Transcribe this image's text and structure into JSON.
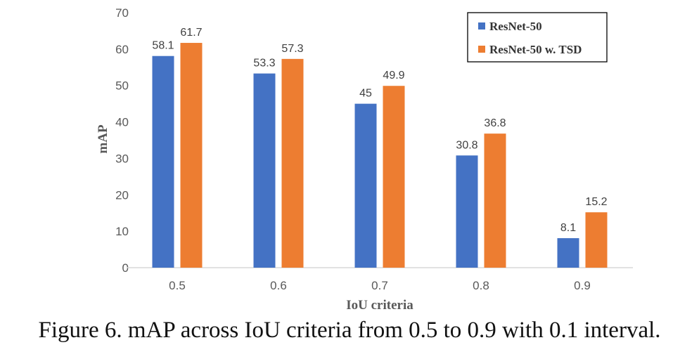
{
  "caption": "Figure 6. mAP across IoU criteria from 0.5 to 0.9 with 0.1 interval.",
  "chart_data": {
    "type": "bar",
    "categories": [
      "0.5",
      "0.6",
      "0.7",
      "0.8",
      "0.9"
    ],
    "series": [
      {
        "name": "ResNet-50",
        "values": [
          58.1,
          53.3,
          45,
          30.8,
          8.1
        ],
        "color": "#4472C4"
      },
      {
        "name": "ResNet-50 w. TSD",
        "values": [
          61.7,
          57.3,
          49.9,
          36.8,
          15.2
        ],
        "color": "#ED7D31"
      }
    ],
    "xlabel": "IoU criteria",
    "ylabel": "mAP",
    "ylim": [
      0,
      70
    ],
    "yticks": [
      0,
      10,
      20,
      30,
      40,
      50,
      60,
      70
    ],
    "grid": false,
    "legend_position": "top-right",
    "data_labels": true
  }
}
